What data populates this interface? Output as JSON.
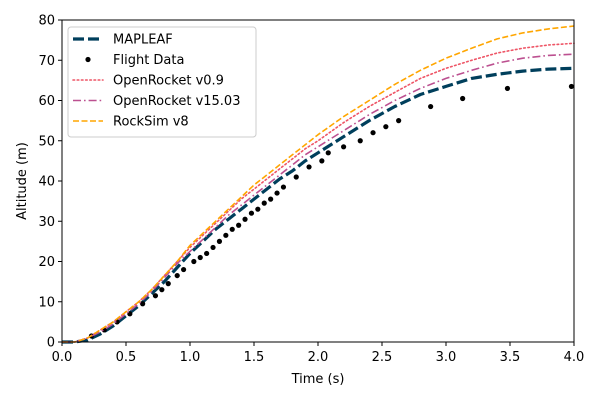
{
  "chart_data": {
    "type": "line",
    "xlabel": "Time (s)",
    "ylabel": "Altitude (m)",
    "xlim": [
      0,
      4
    ],
    "ylim": [
      0,
      80
    ],
    "xticks": [
      0.0,
      0.5,
      1.0,
      1.5,
      2.0,
      2.5,
      3.0,
      3.5,
      4.0
    ],
    "xtick_labels": [
      "0.0",
      "0.5",
      "1.0",
      "1.5",
      "2.0",
      "2.5",
      "3.0",
      "3.5",
      "4.0"
    ],
    "yticks": [
      0,
      10,
      20,
      30,
      40,
      50,
      60,
      70,
      80
    ],
    "ytick_labels": [
      "0",
      "10",
      "20",
      "30",
      "40",
      "50",
      "60",
      "70",
      "80"
    ],
    "grid": false,
    "legend_position": "top-left",
    "series": [
      {
        "name": "MAPLEAF",
        "style": "dashed-thick",
        "color": "#003f5c",
        "x": [
          0.0,
          0.1,
          0.2,
          0.3,
          0.4,
          0.5,
          0.6,
          0.7,
          0.8,
          0.9,
          1.0,
          1.1,
          1.2,
          1.3,
          1.4,
          1.5,
          1.6,
          1.7,
          1.8,
          1.9,
          2.0,
          2.2,
          2.4,
          2.6,
          2.8,
          3.0,
          3.2,
          3.4,
          3.6,
          3.8,
          4.0
        ],
        "y": [
          0.0,
          0.0,
          0.5,
          2.0,
          4.0,
          6.5,
          9.0,
          12.0,
          15.0,
          18.5,
          22.0,
          25.0,
          28.0,
          30.5,
          33.0,
          35.5,
          38.0,
          40.5,
          42.5,
          45.0,
          47.0,
          51.0,
          55.0,
          58.5,
          61.5,
          63.5,
          65.5,
          66.5,
          67.3,
          67.8,
          68.0
        ]
      },
      {
        "name": "Flight Data",
        "style": "markers",
        "color": "#000000",
        "x": [
          0.23,
          0.33,
          0.43,
          0.53,
          0.63,
          0.73,
          0.78,
          0.83,
          0.9,
          0.95,
          1.03,
          1.08,
          1.13,
          1.18,
          1.23,
          1.28,
          1.33,
          1.38,
          1.43,
          1.48,
          1.53,
          1.58,
          1.63,
          1.68,
          1.73,
          1.83,
          1.93,
          2.03,
          2.08,
          2.2,
          2.33,
          2.43,
          2.53,
          2.63,
          2.88,
          3.13,
          3.48,
          3.98
        ],
        "y": [
          1.5,
          3.0,
          5.0,
          7.0,
          9.5,
          11.5,
          13.0,
          14.5,
          16.5,
          18.0,
          20.0,
          21.0,
          22.0,
          23.5,
          25.0,
          26.5,
          28.0,
          29.0,
          30.5,
          32.0,
          33.0,
          34.5,
          35.5,
          37.0,
          38.5,
          41.0,
          43.5,
          45.0,
          47.0,
          48.5,
          50.0,
          52.0,
          53.5,
          55.0,
          58.5,
          60.5,
          63.0,
          63.5
        ]
      },
      {
        "name": "OpenRocket v0.9",
        "style": "dotted",
        "color": "#ee5566",
        "x": [
          0.0,
          0.1,
          0.2,
          0.3,
          0.4,
          0.5,
          0.6,
          0.7,
          0.8,
          0.9,
          1.0,
          1.1,
          1.2,
          1.3,
          1.4,
          1.5,
          1.6,
          1.7,
          1.8,
          1.9,
          2.0,
          2.2,
          2.4,
          2.6,
          2.8,
          3.0,
          3.2,
          3.4,
          3.6,
          3.8,
          4.0
        ],
        "y": [
          0.0,
          0.0,
          1.0,
          3.0,
          5.0,
          7.5,
          10.0,
          13.0,
          16.5,
          20.0,
          23.5,
          26.5,
          29.5,
          32.5,
          35.5,
          38.0,
          40.5,
          43.0,
          45.5,
          48.0,
          50.0,
          54.5,
          58.5,
          62.0,
          65.5,
          68.0,
          70.0,
          71.8,
          73.0,
          73.8,
          74.2
        ]
      },
      {
        "name": "OpenRocket v15.03",
        "style": "dashdot",
        "color": "#bc5090",
        "x": [
          0.0,
          0.1,
          0.2,
          0.3,
          0.4,
          0.5,
          0.6,
          0.7,
          0.8,
          0.9,
          1.0,
          1.1,
          1.2,
          1.3,
          1.4,
          1.5,
          1.6,
          1.7,
          1.8,
          1.9,
          2.0,
          2.2,
          2.4,
          2.6,
          2.8,
          3.0,
          3.2,
          3.4,
          3.6,
          3.8,
          4.0
        ],
        "y": [
          0.0,
          0.0,
          1.0,
          2.5,
          4.5,
          7.0,
          9.5,
          12.5,
          16.0,
          19.5,
          22.5,
          25.5,
          28.5,
          31.5,
          34.0,
          36.5,
          39.0,
          41.5,
          44.0,
          46.5,
          48.5,
          52.5,
          56.5,
          60.0,
          63.0,
          65.5,
          67.5,
          69.3,
          70.5,
          71.2,
          71.5
        ]
      },
      {
        "name": "RockSim v8",
        "style": "dashed",
        "color": "#ffa600",
        "x": [
          0.0,
          0.1,
          0.2,
          0.3,
          0.4,
          0.5,
          0.6,
          0.7,
          0.8,
          0.9,
          1.0,
          1.1,
          1.2,
          1.3,
          1.4,
          1.5,
          1.6,
          1.7,
          1.8,
          1.9,
          2.0,
          2.2,
          2.4,
          2.6,
          2.8,
          3.0,
          3.2,
          3.4,
          3.6,
          3.8,
          4.0
        ],
        "y": [
          0.0,
          0.0,
          1.0,
          3.0,
          5.0,
          7.5,
          10.0,
          13.0,
          16.5,
          20.0,
          24.0,
          27.0,
          30.0,
          33.0,
          36.0,
          39.0,
          41.5,
          44.0,
          46.5,
          49.0,
          51.5,
          56.0,
          60.0,
          64.0,
          67.5,
          70.5,
          73.0,
          75.3,
          76.8,
          77.8,
          78.5
        ]
      }
    ]
  }
}
